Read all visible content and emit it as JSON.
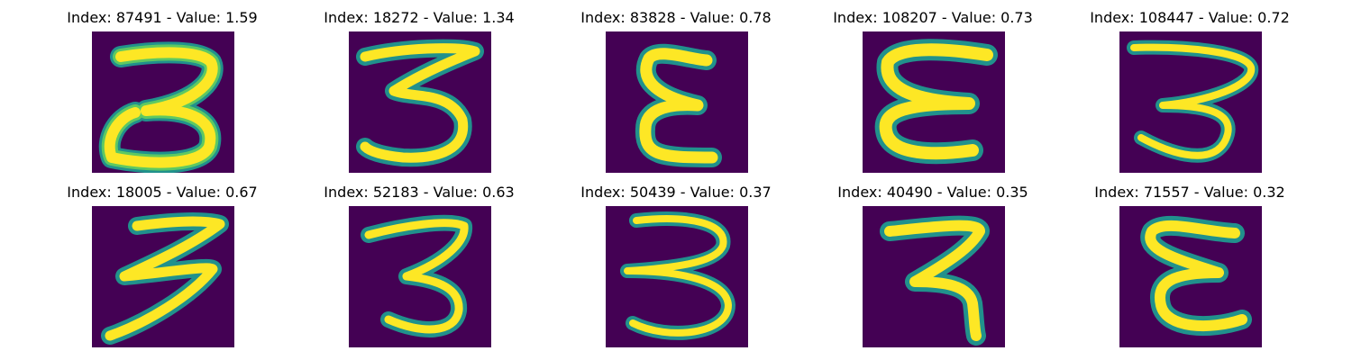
{
  "colors": {
    "background": "#440154",
    "stroke_outer": "#21918c",
    "stroke_mid": "#5ec962",
    "stroke_core": "#fde725"
  },
  "panels": [
    {
      "index": "87491",
      "value": "1.59",
      "title": "Index: 87491 - Value: 1.59",
      "glyph": "3-closed-loop"
    },
    {
      "index": "18272",
      "value": "1.34",
      "title": "Index: 18272 - Value: 1.34",
      "glyph": "3-long-top"
    },
    {
      "index": "83828",
      "value": "0.78",
      "title": "Index: 83828 - Value: 0.78",
      "glyph": "epsilon-narrow"
    },
    {
      "index": "108207",
      "value": "0.73",
      "title": "Index: 108207 - Value: 0.73",
      "glyph": "epsilon-wide"
    },
    {
      "index": "108447",
      "value": "0.72",
      "title": "Index: 108447 - Value: 0.72",
      "glyph": "3-thin"
    },
    {
      "index": "18005",
      "value": "0.67",
      "title": "Index: 18005 - Value: 0.67",
      "glyph": "3-zigzag"
    },
    {
      "index": "52183",
      "value": "0.63",
      "title": "Index: 52183 - Value: 0.63",
      "glyph": "3-slanted"
    },
    {
      "index": "50439",
      "value": "0.37",
      "title": "Index: 50439 - Value: 0.37",
      "glyph": "3-open"
    },
    {
      "index": "40490",
      "value": "0.35",
      "title": "Index: 40490 - Value: 0.35",
      "glyph": "3-flat-top"
    },
    {
      "index": "71557",
      "value": "0.32",
      "title": "Index: 71557 - Value: 0.32",
      "glyph": "epsilon-curvy"
    }
  ]
}
